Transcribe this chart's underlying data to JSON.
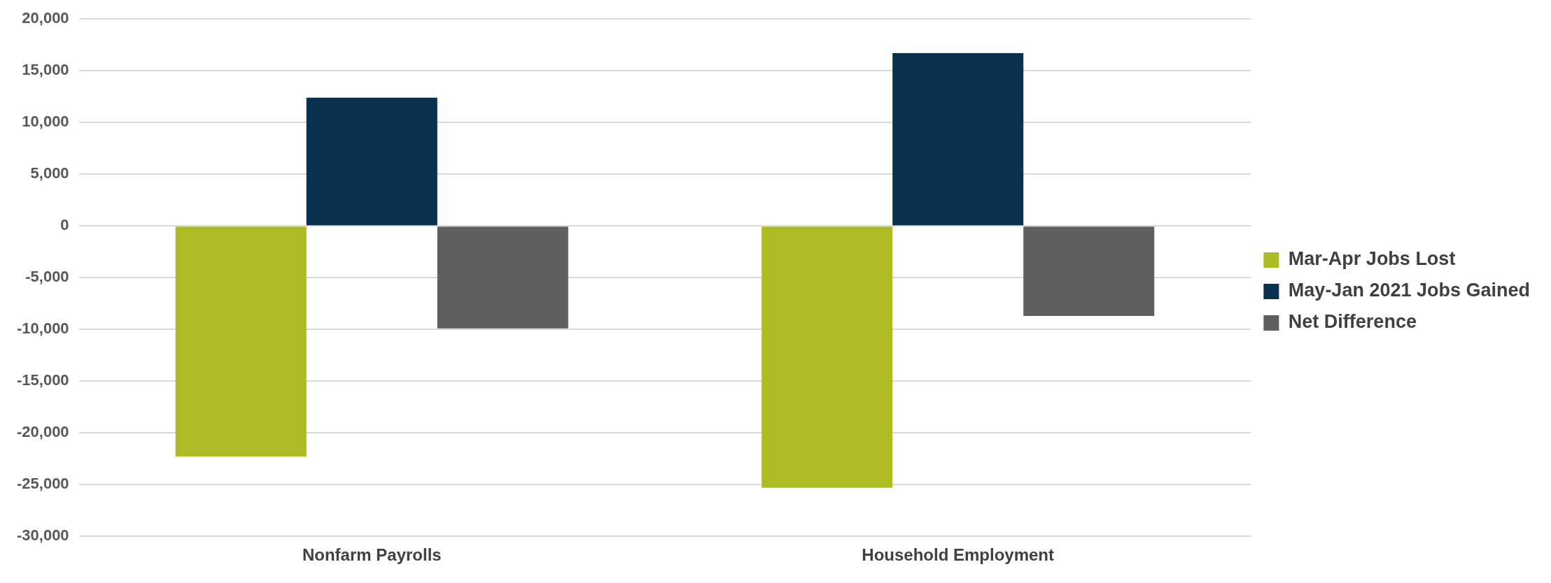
{
  "chart_data": {
    "type": "bar",
    "categories": [
      "Nonfarm Payrolls",
      "Household Employment"
    ],
    "series": [
      {
        "name": "Mar-Apr Jobs Lost",
        "color": "#afbb24",
        "values": [
          -22300,
          -25300
        ]
      },
      {
        "name": "May-Jan 2021 Jobs Gained",
        "color": "#07314c",
        "values": [
          12400,
          16700
        ]
      },
      {
        "name": "Net Difference",
        "color": "#5f5f5f",
        "values": [
          -9900,
          -8700
        ]
      }
    ],
    "ylim": [
      -30000,
      20000
    ],
    "yticks": [
      {
        "value": -30000,
        "label": "-30,000"
      },
      {
        "value": -25000,
        "label": "-25,000"
      },
      {
        "value": -20000,
        "label": "-20,000"
      },
      {
        "value": -15000,
        "label": "-15,000"
      },
      {
        "value": -10000,
        "label": "-10,000"
      },
      {
        "value": -5000,
        "label": "-5,000"
      },
      0,
      {
        "value": 5000,
        "label": "5,000"
      },
      {
        "value": 10000,
        "label": "10,000"
      },
      {
        "value": 15000,
        "label": "15,000"
      },
      {
        "value": 20000,
        "label": "20,000"
      }
    ],
    "grid": "y",
    "legend": "right"
  }
}
